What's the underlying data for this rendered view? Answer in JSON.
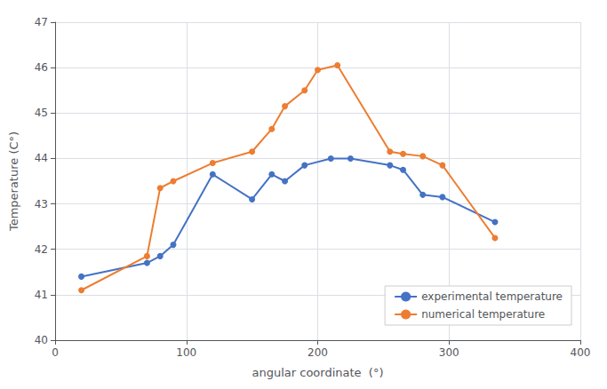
{
  "chart_data": {
    "type": "line",
    "xlabel": "angular coordinate  (°)",
    "ylabel": "Temperature (C°)",
    "series": [
      {
        "name": "experimental temperature",
        "color": "#4472c4",
        "marker": "circle",
        "x": [
          20,
          70,
          80,
          90,
          120,
          150,
          165,
          175,
          190,
          210,
          225,
          255,
          265,
          280,
          295,
          335
        ],
        "values": [
          41.4,
          41.7,
          41.85,
          42.1,
          43.65,
          43.1,
          43.65,
          43.5,
          43.85,
          44.0,
          44.0,
          43.85,
          43.75,
          43.2,
          43.15,
          42.6
        ]
      },
      {
        "name": "numerical temperature",
        "color": "#ed7d31",
        "marker": "circle",
        "x": [
          20,
          70,
          80,
          90,
          120,
          150,
          165,
          175,
          190,
          200,
          215,
          255,
          265,
          280,
          295,
          335
        ],
        "values": [
          41.1,
          41.85,
          43.35,
          43.5,
          43.9,
          44.15,
          44.65,
          45.15,
          45.5,
          45.95,
          46.05,
          44.15,
          44.1,
          44.05,
          43.85,
          42.25
        ]
      }
    ],
    "xlim": [
      0,
      400
    ],
    "xticks": [
      0,
      100,
      200,
      300,
      400
    ],
    "ylim": [
      40,
      47
    ],
    "yticks": [
      40,
      41,
      42,
      43,
      44,
      45,
      46,
      47
    ],
    "grid": true,
    "legend": "lower right"
  }
}
